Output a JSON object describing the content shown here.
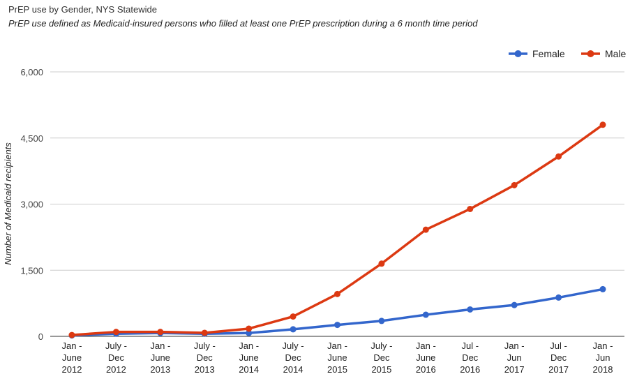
{
  "title": "PrEP use by Gender, NYS Statewide",
  "subtitle": "PrEP use defined as Medicaid-insured persons who filled at least one PrEP prescription during a 6 month time period",
  "chart_data": {
    "type": "line",
    "title": "PrEP use by Gender, NYS Statewide",
    "subtitle": "PrEP use defined as Medicaid-insured persons who filled at least one PrEP prescription during a 6 month time period",
    "xlabel": "",
    "ylabel": "Number of Medicaid recipients",
    "ylim": [
      0,
      6000
    ],
    "yticks": [
      0,
      1500,
      3000,
      4500,
      6000
    ],
    "ytick_labels": [
      "0",
      "1,500",
      "3,000",
      "4,500",
      "6,000"
    ],
    "grid": true,
    "legend_position": "top-right",
    "categories": [
      [
        "Jan -",
        "June",
        "2012"
      ],
      [
        "July -",
        "Dec",
        "2012"
      ],
      [
        "Jan -",
        "June",
        "2013"
      ],
      [
        "July -",
        "Dec",
        "2013"
      ],
      [
        "Jan -",
        "June",
        "2014"
      ],
      [
        "July -",
        "Dec",
        "2014"
      ],
      [
        "Jan -",
        "June",
        "2015"
      ],
      [
        "July -",
        "Dec",
        "2015"
      ],
      [
        "Jan -",
        "June",
        "2016"
      ],
      [
        "Jul -",
        "Dec",
        "2016"
      ],
      [
        "Jan -",
        "Jun",
        "2017"
      ],
      [
        "Jul -",
        "Dec",
        "2017"
      ],
      [
        "Jan -",
        "Jun",
        "2018"
      ]
    ],
    "series": [
      {
        "name": "Female",
        "color": "#3366cc",
        "values": [
          20,
          60,
          75,
          60,
          75,
          160,
          260,
          350,
          490,
          610,
          710,
          880,
          1070
        ]
      },
      {
        "name": "Male",
        "color": "#dc3912",
        "values": [
          30,
          100,
          100,
          80,
          175,
          450,
          960,
          1650,
          2420,
          2890,
          3430,
          4080,
          4800
        ]
      }
    ]
  }
}
